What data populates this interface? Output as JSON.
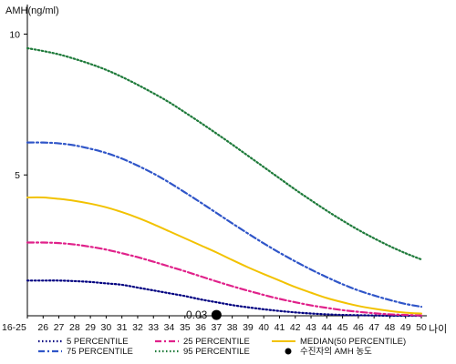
{
  "chart_data": {
    "type": "line",
    "ylabel": "AMH(ng/ml)",
    "xlabel": "나이",
    "x": [
      "16-25",
      "26",
      "27",
      "28",
      "29",
      "30",
      "31",
      "32",
      "33",
      "34",
      "35",
      "36",
      "37",
      "38",
      "39",
      "40",
      "41",
      "42",
      "43",
      "44",
      "45",
      "46",
      "47",
      "48",
      "49",
      "50"
    ],
    "ylim": [
      0,
      10.5
    ],
    "yticks": [
      "10",
      "5"
    ],
    "series": [
      {
        "name": "5 PERCENTILE",
        "color": "#000080",
        "style": "dotted",
        "values": [
          1.25,
          1.25,
          1.25,
          1.23,
          1.2,
          1.15,
          1.1,
          1.0,
          0.9,
          0.8,
          0.7,
          0.58,
          0.48,
          0.38,
          0.3,
          0.23,
          0.17,
          0.12,
          0.08,
          0.05,
          0.03,
          0.02,
          0.01,
          0.0,
          0.0,
          0.0
        ]
      },
      {
        "name": "25 PERCENTILE",
        "color": "#e0218a",
        "style": "dashdot",
        "values": [
          2.6,
          2.6,
          2.58,
          2.53,
          2.45,
          2.35,
          2.22,
          2.08,
          1.92,
          1.75,
          1.58,
          1.4,
          1.22,
          1.05,
          0.89,
          0.74,
          0.6,
          0.48,
          0.37,
          0.28,
          0.2,
          0.14,
          0.09,
          0.05,
          0.03,
          0.01
        ]
      },
      {
        "name": "MEDIAN(50 PERCENTILE)",
        "color": "#f2c200",
        "style": "solid",
        "values": [
          4.2,
          4.2,
          4.15,
          4.08,
          3.98,
          3.85,
          3.68,
          3.48,
          3.25,
          3.0,
          2.75,
          2.5,
          2.25,
          1.98,
          1.72,
          1.48,
          1.25,
          1.02,
          0.82,
          0.63,
          0.48,
          0.35,
          0.25,
          0.17,
          0.11,
          0.08
        ]
      },
      {
        "name": "75 PERCENTILE",
        "color": "#2f55c8",
        "style": "dashdot",
        "values": [
          6.15,
          6.15,
          6.12,
          6.05,
          5.93,
          5.78,
          5.58,
          5.33,
          5.05,
          4.73,
          4.38,
          4.02,
          3.65,
          3.28,
          2.92,
          2.57,
          2.24,
          1.93,
          1.64,
          1.37,
          1.12,
          0.9,
          0.72,
          0.56,
          0.42,
          0.32
        ]
      },
      {
        "name": "95 PERCENTILE",
        "color": "#1e7a3a",
        "style": "dotted",
        "values": [
          9.5,
          9.4,
          9.28,
          9.12,
          8.94,
          8.73,
          8.48,
          8.2,
          7.9,
          7.58,
          7.22,
          6.85,
          6.47,
          6.08,
          5.68,
          5.28,
          4.88,
          4.48,
          4.1,
          3.73,
          3.38,
          3.05,
          2.75,
          2.47,
          2.22,
          2.0
        ]
      }
    ],
    "marker": {
      "name": "수진자의 AMH 농도",
      "x": "37",
      "y": 0.03,
      "label": "0.03",
      "color": "#000000"
    },
    "legend_position": "bottom",
    "grid": false
  }
}
